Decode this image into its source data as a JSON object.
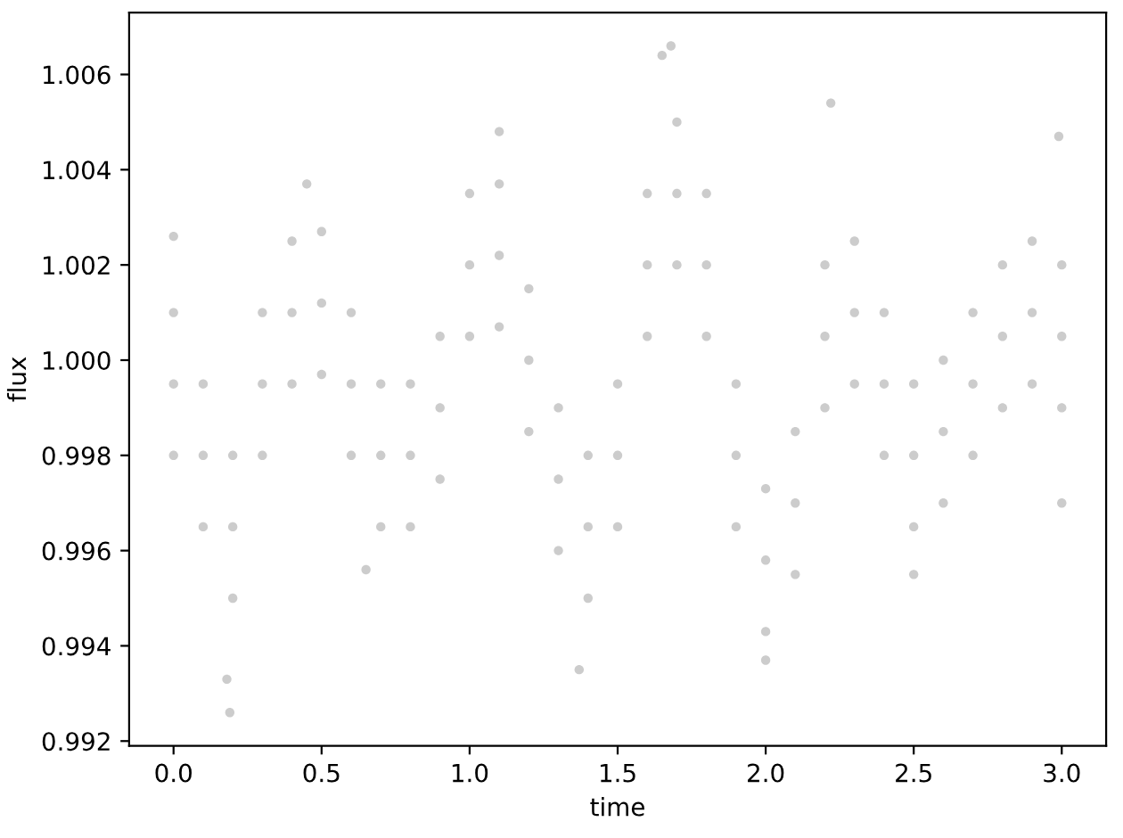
{
  "chart_data": {
    "type": "scatter",
    "xlabel": "time",
    "ylabel": "flux",
    "x": [
      0.0,
      0.0,
      0.0,
      0.1,
      0.1,
      0.1,
      0.2,
      0.2,
      0.2,
      0.3,
      0.3,
      0.3,
      0.4,
      0.4,
      0.4,
      0.5,
      0.5,
      0.5,
      0.6,
      0.6,
      0.6,
      0.7,
      0.7,
      0.7,
      0.8,
      0.8,
      0.8,
      0.9,
      0.9,
      0.9,
      1.0,
      1.0,
      1.0,
      1.1,
      1.1,
      1.1,
      1.2,
      1.2,
      1.2,
      1.3,
      1.3,
      1.3,
      1.4,
      1.4,
      1.4,
      1.5,
      1.5,
      1.5,
      1.6,
      1.6,
      1.6,
      1.7,
      1.7,
      1.7,
      1.8,
      1.8,
      1.8,
      1.9,
      1.9,
      1.9,
      2.0,
      2.0,
      2.0,
      2.1,
      2.1,
      2.1,
      2.2,
      2.2,
      2.2,
      2.3,
      2.3,
      2.3,
      2.4,
      2.4,
      2.4,
      2.5,
      2.5,
      2.5,
      2.6,
      2.6,
      2.6,
      2.7,
      2.7,
      2.7,
      2.8,
      2.8,
      2.8,
      2.9,
      2.9,
      2.9,
      3.0,
      3.0,
      3.0,
      0.0,
      0.19,
      0.18,
      1.37,
      1.68,
      1.65,
      1.1,
      2.22,
      2.99,
      0.45,
      2.0,
      2.5,
      0.65,
      3.0
    ],
    "values": [
      0.9995,
      1.001,
      0.998,
      0.998,
      0.9995,
      0.9965,
      0.9965,
      0.998,
      0.995,
      0.9995,
      1.001,
      0.998,
      1.001,
      1.0025,
      0.9995,
      1.0012,
      1.0027,
      0.9997,
      0.9995,
      1.001,
      0.998,
      0.998,
      0.9995,
      0.9965,
      0.998,
      0.9995,
      0.9965,
      0.999,
      1.0005,
      0.9975,
      1.002,
      1.0035,
      1.0005,
      1.0022,
      1.0037,
      1.0007,
      1.0,
      1.0015,
      0.9985,
      0.9975,
      0.999,
      0.996,
      0.9965,
      0.998,
      0.995,
      0.998,
      0.9995,
      0.9965,
      1.002,
      1.0035,
      1.0005,
      1.0035,
      1.005,
      1.002,
      1.002,
      1.0035,
      1.0005,
      0.998,
      0.9995,
      0.9965,
      0.9958,
      0.9973,
      0.9943,
      0.997,
      0.9985,
      0.9955,
      1.0005,
      1.002,
      0.999,
      1.001,
      1.0025,
      0.9995,
      0.9995,
      1.001,
      0.998,
      0.998,
      0.9995,
      0.9965,
      0.9985,
      1.0,
      0.997,
      0.9995,
      1.001,
      0.998,
      1.0005,
      1.002,
      0.999,
      1.001,
      1.0025,
      0.9995,
      1.0005,
      1.002,
      0.999,
      1.0026,
      0.9926,
      0.9933,
      0.9935,
      1.0066,
      1.0064,
      1.0048,
      1.0054,
      1.0047,
      1.0037,
      0.9937,
      0.9955,
      0.9956,
      0.997
    ],
    "color": "#cccccc",
    "marker": "circle",
    "xlim": [
      -0.15,
      3.15
    ],
    "ylim": [
      0.9919,
      1.0073
    ],
    "xticks": [
      {
        "value": 0.0,
        "label": "0.0"
      },
      {
        "value": 0.5,
        "label": "0.5"
      },
      {
        "value": 1.0,
        "label": "1.0"
      },
      {
        "value": 1.5,
        "label": "1.5"
      },
      {
        "value": 2.0,
        "label": "2.0"
      },
      {
        "value": 2.5,
        "label": "2.5"
      },
      {
        "value": 3.0,
        "label": "3.0"
      }
    ],
    "yticks": [
      {
        "value": 0.992,
        "label": "0.992"
      },
      {
        "value": 0.994,
        "label": "0.994"
      },
      {
        "value": 0.996,
        "label": "0.996"
      },
      {
        "value": 0.998,
        "label": "0.998"
      },
      {
        "value": 1.0,
        "label": "1.000"
      },
      {
        "value": 1.002,
        "label": "1.002"
      },
      {
        "value": 1.004,
        "label": "1.004"
      },
      {
        "value": 1.006,
        "label": "1.006"
      }
    ]
  }
}
